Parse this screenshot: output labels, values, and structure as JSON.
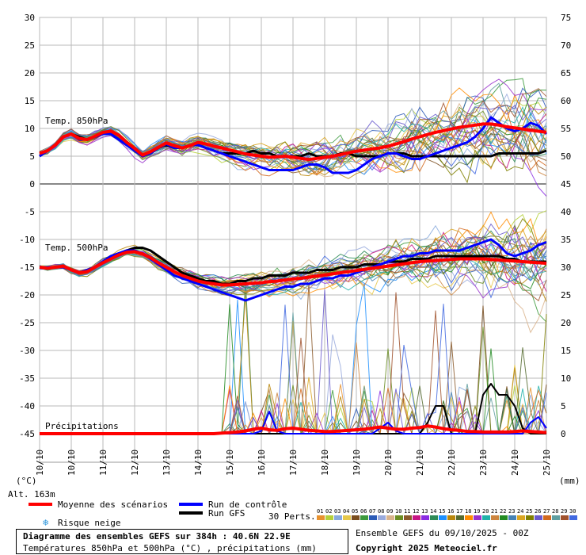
{
  "chart_data": {
    "type": "line",
    "title": "Diagramme des ensembles GEFS sur 384h : 40.6N 22.9E",
    "subtitle": "Températures 850hPa et 500hPa (°C) , précipitations (mm)",
    "left_axis": {
      "label": "(°C)",
      "ticks": [
        30,
        25,
        20,
        15,
        10,
        5,
        0,
        -5,
        -10,
        -15,
        -20,
        -25,
        -30,
        -35,
        -40,
        -45
      ],
      "range": [
        -45,
        30
      ]
    },
    "right_axis": {
      "label": "(mm)",
      "ticks": [
        75,
        70,
        65,
        60,
        55,
        50,
        45,
        40,
        35,
        30,
        25,
        20,
        15,
        10,
        5,
        0
      ],
      "range": [
        0,
        75
      ]
    },
    "x_labels": [
      "10/10",
      "10/10",
      "11/10",
      "12/10",
      "13/10",
      "14/10",
      "15/10",
      "16/10",
      "17/10",
      "18/10",
      "19/10",
      "20/10",
      "21/10",
      "22/10",
      "23/10",
      "24/10",
      "25/10"
    ],
    "x_steps": 64,
    "panel_labels": {
      "t850": "Temp. 850hPa",
      "t500": "Temp. 500hPa",
      "precip": "Précipitations"
    },
    "t850": {
      "mean": [
        5.5,
        6,
        7,
        8.5,
        9,
        8.2,
        8,
        8.6,
        9.3,
        9.5,
        8.8,
        7.5,
        6.4,
        5.2,
        5.8,
        6.6,
        7.4,
        6.9,
        6.5,
        6.9,
        7.5,
        7.2,
        6.8,
        6.5,
        6.1,
        5.8,
        5.4,
        5.2,
        5,
        4.8,
        4.9,
        5,
        4.8,
        4.6,
        4.4,
        4.6,
        4.8,
        5,
        5.3,
        5.6,
        5.9,
        6.1,
        6.3,
        6.5,
        6.8,
        7.2,
        7.6,
        8.1,
        8.5,
        8.9,
        9.3,
        9.6,
        9.9,
        10.2,
        10.4,
        10.6,
        10.8,
        10.8,
        10.6,
        10.3,
        10.1,
        9.9,
        9.7,
        9.5,
        9.3
      ],
      "control": [
        5,
        6,
        7,
        8.5,
        9,
        8,
        8,
        8.5,
        9,
        9,
        8,
        7,
        6,
        5,
        5.5,
        6.5,
        7.2,
        6.5,
        6.5,
        7,
        7,
        6.5,
        6,
        5.5,
        5,
        4.5,
        4,
        3.5,
        3,
        2.5,
        2.5,
        2.5,
        2.5,
        3,
        3.5,
        3.5,
        3,
        2,
        2,
        2,
        2.5,
        3.5,
        4.5,
        5,
        5.5,
        5.5,
        5,
        4.5,
        4.5,
        5,
        5.5,
        6,
        6.5,
        7,
        7.5,
        8.5,
        10,
        12,
        11,
        10,
        9.5,
        10,
        11,
        10.5,
        9
      ],
      "gfs": [
        5,
        6,
        7,
        8.5,
        9,
        8.5,
        8,
        8.5,
        9,
        9,
        8,
        7,
        6,
        5,
        5.5,
        6.5,
        7,
        6.5,
        6.5,
        7,
        7,
        6.5,
        6,
        5.5,
        5.5,
        5.5,
        5.5,
        6,
        5.5,
        5.5,
        5,
        5,
        5,
        5,
        5.5,
        5,
        5,
        5,
        5.5,
        5.5,
        5,
        5,
        5,
        5,
        5.5,
        5.5,
        5.5,
        5,
        5,
        5,
        5,
        5,
        5,
        5,
        5,
        5,
        5,
        5,
        5.5,
        5.5,
        5.5,
        5.5,
        5.5,
        5.5,
        6
      ]
    },
    "t500": {
      "mean": [
        -15,
        -15.2,
        -15,
        -14.8,
        -15.5,
        -16,
        -15.8,
        -15,
        -14.2,
        -13.5,
        -12.8,
        -12.3,
        -12.2,
        -12.6,
        -13.3,
        -14.2,
        -15,
        -15.8,
        -16.5,
        -17,
        -17.5,
        -17.8,
        -18,
        -18.2,
        -18.2,
        -18.1,
        -18,
        -17.9,
        -17.8,
        -17.6,
        -17.5,
        -17.3,
        -17.1,
        -17,
        -16.8,
        -16.6,
        -16.4,
        -16.2,
        -16,
        -15.8,
        -15.6,
        -15.4,
        -15.2,
        -15,
        -14.8,
        -14.6,
        -14.4,
        -14.2,
        -14,
        -13.9,
        -13.8,
        -13.7,
        -13.6,
        -13.5,
        -13.5,
        -13.5,
        -13.5,
        -13.6,
        -13.7,
        -13.8,
        -13.9,
        -14,
        -14.1,
        -14.2,
        -14.3
      ],
      "control": [
        -15,
        -15,
        -15,
        -15,
        -15.5,
        -16,
        -15.5,
        -15,
        -14,
        -13,
        -12.5,
        -12,
        -12,
        -12.5,
        -13.5,
        -14.5,
        -15.5,
        -16.5,
        -17,
        -17.5,
        -18,
        -18.5,
        -19,
        -19.5,
        -20,
        -20.5,
        -21,
        -20.5,
        -20,
        -19.5,
        -19,
        -18.5,
        -18.5,
        -18,
        -18,
        -17.5,
        -17,
        -17,
        -16.5,
        -16.5,
        -16,
        -15.5,
        -15,
        -14.5,
        -14,
        -13.5,
        -13,
        -13,
        -12.5,
        -12.5,
        -12,
        -12,
        -12,
        -12,
        -11.5,
        -11,
        -10.5,
        -10,
        -11,
        -12.5,
        -13,
        -12.5,
        -12,
        -11,
        -10.5
      ],
      "gfs": [
        -15,
        -15,
        -15,
        -15,
        -15.5,
        -16,
        -15.5,
        -15,
        -14,
        -13,
        -12.5,
        -12,
        -11.5,
        -11.5,
        -12,
        -13,
        -14,
        -15,
        -16,
        -16.5,
        -17,
        -17.5,
        -17.5,
        -18,
        -18,
        -17.5,
        -17.5,
        -17,
        -17,
        -16.5,
        -16.5,
        -16.5,
        -16,
        -16,
        -16,
        -15.5,
        -15.5,
        -15.5,
        -15,
        -15,
        -15,
        -14.5,
        -14.5,
        -14.5,
        -14,
        -14,
        -14,
        -13.5,
        -13.5,
        -13.5,
        -13,
        -13,
        -13,
        -13,
        -13,
        -13,
        -13,
        -13,
        -13,
        -13.5,
        -13.5,
        -14,
        -14,
        -14,
        -14
      ]
    },
    "precip_mm": {
      "mean": [
        0,
        0,
        0,
        0,
        0,
        0,
        0,
        0,
        0,
        0,
        0,
        0,
        0,
        0,
        0,
        0,
        0,
        0,
        0,
        0,
        0,
        0,
        0,
        0.1,
        0.2,
        0.3,
        0.5,
        0.8,
        1,
        0.7,
        0.6,
        0.9,
        1,
        0.8,
        0.6,
        0.5,
        0.4,
        0.4,
        0.5,
        0.6,
        0.7,
        0.8,
        1,
        1.2,
        1,
        0.8,
        0.8,
        1,
        1.1,
        1.4,
        1.2,
        0.9,
        0.7,
        0.6,
        0.4,
        0.4,
        0.3,
        0.3,
        0.3,
        0.3,
        0.4,
        0.5,
        0.4,
        0.3,
        0.2
      ],
      "control": [
        0,
        0,
        0,
        0,
        0,
        0,
        0,
        0,
        0,
        0,
        0,
        0,
        0,
        0,
        0,
        0,
        0,
        0,
        0,
        0,
        0,
        0,
        0,
        0,
        0,
        0,
        0,
        0,
        0.5,
        4,
        0.5,
        0,
        0,
        0,
        0,
        0,
        0,
        0,
        0,
        0,
        0,
        0,
        0,
        1,
        2,
        0.5,
        0,
        0,
        0,
        0,
        0,
        0,
        0,
        0,
        0,
        0,
        0,
        0,
        0,
        0,
        0,
        0,
        2,
        3,
        1
      ],
      "gfs": [
        0,
        0,
        0,
        0,
        0,
        0,
        0,
        0,
        0,
        0,
        0,
        0,
        0,
        0,
        0,
        0,
        0,
        0,
        0,
        0,
        0,
        0,
        0,
        0,
        0,
        0,
        0,
        0,
        0,
        0,
        0,
        0,
        0,
        0,
        0,
        0,
        0,
        0,
        0,
        0,
        0,
        0,
        0,
        0,
        0,
        0,
        0,
        0,
        0,
        2,
        5,
        5,
        0,
        0,
        0,
        0,
        7,
        9,
        7,
        7,
        5,
        1,
        0,
        0,
        0
      ]
    },
    "members_count": 30,
    "colors": {
      "mean": "#ff0000",
      "control": "#0000ff",
      "gfs": "#000000",
      "grid": "#b8b8b8",
      "snow": "#3399dd"
    },
    "member_colors": [
      "#e8922f",
      "#b5d13a",
      "#88aadd",
      "#e6c84a",
      "#7a4d1e",
      "#3c9a3c",
      "#2b5bb7",
      "#9ad",
      "#d9b38c",
      "#6b8e23",
      "#8b5a2b",
      "#c71585",
      "#8a2be2",
      "#2e8b57",
      "#1e90ff",
      "#b8860b",
      "#556b2f",
      "#ff8c00",
      "#9932cc",
      "#20b2aa",
      "#cd853f",
      "#228b22",
      "#4682b4",
      "#daa520",
      "#808000",
      "#6a5acd",
      "#d2691e",
      "#5f9ea0",
      "#a0522d",
      "#4169e1"
    ]
  },
  "legend": {
    "alt": "Alt. 163m",
    "mean": "Moyenne des scénarios",
    "control": "Run de contrôle",
    "gfs": "Run GFS",
    "snow": "Risque neige",
    "perts_label": "30 Perts.",
    "perts": [
      "01",
      "02",
      "03",
      "04",
      "05",
      "06",
      "07",
      "08",
      "09",
      "10",
      "11",
      "12",
      "13",
      "14",
      "15",
      "16",
      "17",
      "18",
      "19",
      "20",
      "21",
      "22",
      "23",
      "24",
      "25",
      "26",
      "27",
      "28",
      "29",
      "30"
    ]
  },
  "footer": {
    "title": "Diagramme des ensembles GEFS sur 384h : 40.6N 22.9E",
    "subtitle": "Températures 850hPa et 500hPa (°C) , précipitations (mm)",
    "run_info": "Ensemble GEFS du 09/10/2025 - 00Z",
    "copyright": "Copyright 2025 Meteociel.fr"
  }
}
